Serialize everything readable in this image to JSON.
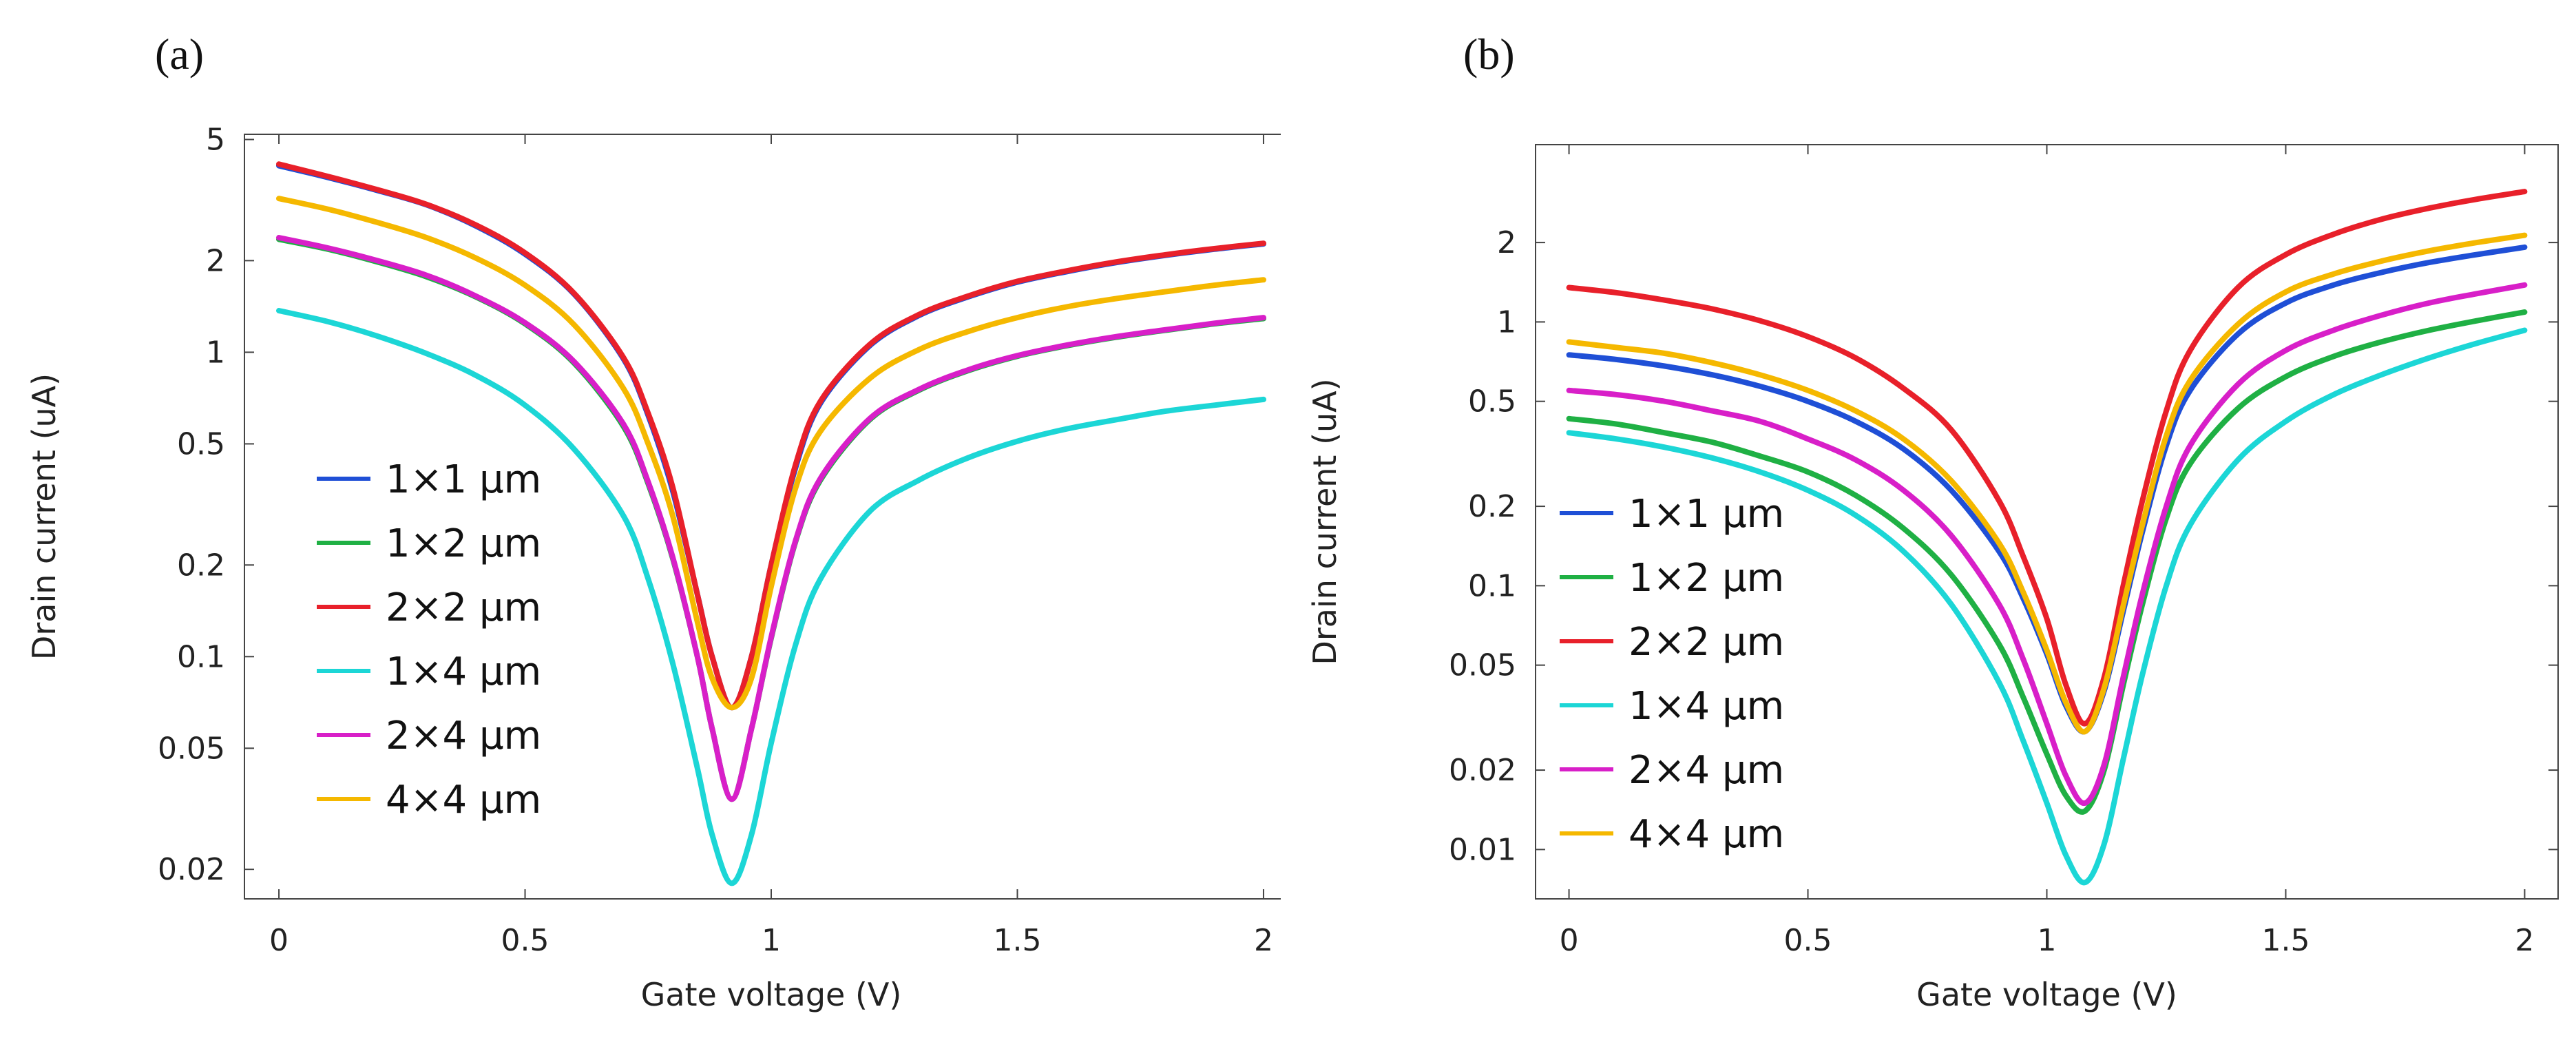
{
  "chart_data": [
    {
      "type": "line",
      "panel_label": "(a)",
      "xlabel": "Gate voltage (V)",
      "ylabel": "Drain current (uA)",
      "yscale": "log",
      "xlim": [
        -0.07,
        2.07
      ],
      "ylim": [
        0.016,
        5.2
      ],
      "xticks": [
        0,
        0.5,
        1,
        1.5,
        2
      ],
      "xtick_labels": [
        "0",
        "0.5",
        "1",
        "1.5",
        "2"
      ],
      "yticks": [
        0.02,
        0.05,
        0.1,
        0.2,
        0.5,
        1,
        2,
        5
      ],
      "ytick_labels": [
        "0.02",
        "0.05",
        "0.1",
        "0.2",
        "0.5",
        "1",
        "2",
        "5"
      ],
      "x": [
        0,
        0.1,
        0.2,
        0.3,
        0.4,
        0.5,
        0.6,
        0.7,
        0.75,
        0.8,
        0.85,
        0.88,
        0.92,
        0.96,
        1.0,
        1.05,
        1.1,
        1.2,
        1.3,
        1.4,
        1.5,
        1.6,
        1.7,
        1.8,
        1.9,
        2.0
      ],
      "legend_location": "lower-left",
      "series": [
        {
          "name": "1×1 μm",
          "color": "#1f4fd6",
          "values": [
            4.1,
            3.75,
            3.4,
            3.05,
            2.6,
            2.1,
            1.55,
            0.95,
            0.62,
            0.35,
            0.16,
            0.1,
            0.068,
            0.1,
            0.2,
            0.42,
            0.68,
            1.05,
            1.32,
            1.52,
            1.7,
            1.84,
            1.97,
            2.08,
            2.18,
            2.27
          ]
        },
        {
          "name": "1×2 μm",
          "color": "#1fb044",
          "values": [
            2.35,
            2.18,
            1.98,
            1.77,
            1.52,
            1.24,
            0.92,
            0.57,
            0.37,
            0.21,
            0.1,
            0.058,
            0.034,
            0.058,
            0.115,
            0.24,
            0.38,
            0.6,
            0.75,
            0.87,
            0.97,
            1.05,
            1.12,
            1.18,
            1.24,
            1.29
          ]
        },
        {
          "name": "2×2 μm",
          "color": "#e8202a",
          "values": [
            4.15,
            3.78,
            3.42,
            3.06,
            2.62,
            2.12,
            1.56,
            0.96,
            0.63,
            0.36,
            0.16,
            0.1,
            0.068,
            0.1,
            0.2,
            0.43,
            0.69,
            1.06,
            1.33,
            1.53,
            1.71,
            1.85,
            1.98,
            2.09,
            2.19,
            2.28
          ]
        },
        {
          "name": "1×4 μm",
          "color": "#1cd6d6",
          "values": [
            1.37,
            1.26,
            1.13,
            0.99,
            0.84,
            0.67,
            0.48,
            0.29,
            0.18,
            0.095,
            0.043,
            0.026,
            0.018,
            0.026,
            0.052,
            0.11,
            0.18,
            0.3,
            0.38,
            0.45,
            0.51,
            0.56,
            0.6,
            0.64,
            0.67,
            0.7
          ]
        },
        {
          "name": "2×4 μm",
          "color": "#d81fc8",
          "values": [
            2.38,
            2.2,
            2.0,
            1.79,
            1.53,
            1.25,
            0.93,
            0.58,
            0.375,
            0.212,
            0.1,
            0.058,
            0.034,
            0.058,
            0.116,
            0.242,
            0.385,
            0.605,
            0.755,
            0.875,
            0.975,
            1.055,
            1.125,
            1.185,
            1.245,
            1.3
          ]
        },
        {
          "name": "4×4 μm",
          "color": "#f5b800",
          "values": [
            3.2,
            2.95,
            2.67,
            2.38,
            2.04,
            1.66,
            1.23,
            0.76,
            0.5,
            0.29,
            0.13,
            0.085,
            0.068,
            0.085,
            0.17,
            0.36,
            0.55,
            0.82,
            1.02,
            1.17,
            1.3,
            1.41,
            1.5,
            1.58,
            1.66,
            1.73
          ]
        }
      ]
    },
    {
      "type": "line",
      "panel_label": "(b)",
      "xlabel": "Gate voltage (V)",
      "ylabel": "Drain current (uA)",
      "yscale": "log",
      "xlim": [
        -0.07,
        2.07
      ],
      "ylim": [
        0.0065,
        4.7
      ],
      "xticks": [
        0,
        0.5,
        1,
        1.5,
        2
      ],
      "xtick_labels": [
        "0",
        "0.5",
        "1",
        "1.5",
        "2"
      ],
      "yticks": [
        0.01,
        0.02,
        0.05,
        0.1,
        0.2,
        0.5,
        1,
        2
      ],
      "ytick_labels": [
        "0.01",
        "0.02",
        "0.05",
        "0.1",
        "0.2",
        "0.5",
        "1",
        "2"
      ],
      "x": [
        0,
        0.1,
        0.2,
        0.3,
        0.4,
        0.5,
        0.6,
        0.7,
        0.8,
        0.9,
        0.95,
        1.0,
        1.04,
        1.08,
        1.12,
        1.16,
        1.2,
        1.25,
        1.3,
        1.4,
        1.5,
        1.6,
        1.7,
        1.8,
        1.9,
        2.0
      ],
      "legend_location": "lower-left",
      "series": [
        {
          "name": "1×1 μm",
          "color": "#1f4fd6",
          "values": [
            0.75,
            0.72,
            0.68,
            0.63,
            0.57,
            0.5,
            0.42,
            0.33,
            0.23,
            0.135,
            0.09,
            0.055,
            0.035,
            0.028,
            0.04,
            0.08,
            0.16,
            0.34,
            0.55,
            0.9,
            1.18,
            1.38,
            1.54,
            1.68,
            1.8,
            1.92
          ]
        },
        {
          "name": "1×2 μm",
          "color": "#1fb044",
          "values": [
            0.43,
            0.41,
            0.38,
            0.35,
            0.31,
            0.27,
            0.22,
            0.165,
            0.11,
            0.06,
            0.038,
            0.023,
            0.016,
            0.014,
            0.02,
            0.042,
            0.085,
            0.18,
            0.29,
            0.47,
            0.62,
            0.74,
            0.84,
            0.93,
            1.01,
            1.09
          ]
        },
        {
          "name": "2×2 μm",
          "color": "#e8202a",
          "values": [
            1.35,
            1.29,
            1.21,
            1.12,
            1.01,
            0.88,
            0.73,
            0.56,
            0.39,
            0.21,
            0.13,
            0.075,
            0.042,
            0.03,
            0.045,
            0.1,
            0.21,
            0.46,
            0.78,
            1.35,
            1.8,
            2.15,
            2.45,
            2.7,
            2.92,
            3.12
          ]
        },
        {
          "name": "1×4 μm",
          "color": "#1cd6d6",
          "values": [
            0.38,
            0.36,
            0.335,
            0.305,
            0.27,
            0.23,
            0.185,
            0.135,
            0.085,
            0.043,
            0.026,
            0.015,
            0.0095,
            0.0075,
            0.0105,
            0.022,
            0.046,
            0.1,
            0.17,
            0.3,
            0.42,
            0.53,
            0.63,
            0.73,
            0.83,
            0.93
          ]
        },
        {
          "name": "2×4 μm",
          "color": "#d81fc8",
          "values": [
            0.55,
            0.53,
            0.5,
            0.46,
            0.42,
            0.36,
            0.3,
            0.23,
            0.155,
            0.085,
            0.053,
            0.03,
            0.019,
            0.015,
            0.021,
            0.045,
            0.093,
            0.2,
            0.34,
            0.58,
            0.78,
            0.93,
            1.06,
            1.18,
            1.28,
            1.38
          ]
        },
        {
          "name": "4×4 μm",
          "color": "#f5b800",
          "values": [
            0.84,
            0.8,
            0.76,
            0.7,
            0.63,
            0.55,
            0.46,
            0.36,
            0.25,
            0.145,
            0.095,
            0.057,
            0.036,
            0.028,
            0.041,
            0.084,
            0.17,
            0.37,
            0.6,
            0.98,
            1.3,
            1.52,
            1.7,
            1.86,
            2.0,
            2.13
          ]
        }
      ]
    }
  ]
}
